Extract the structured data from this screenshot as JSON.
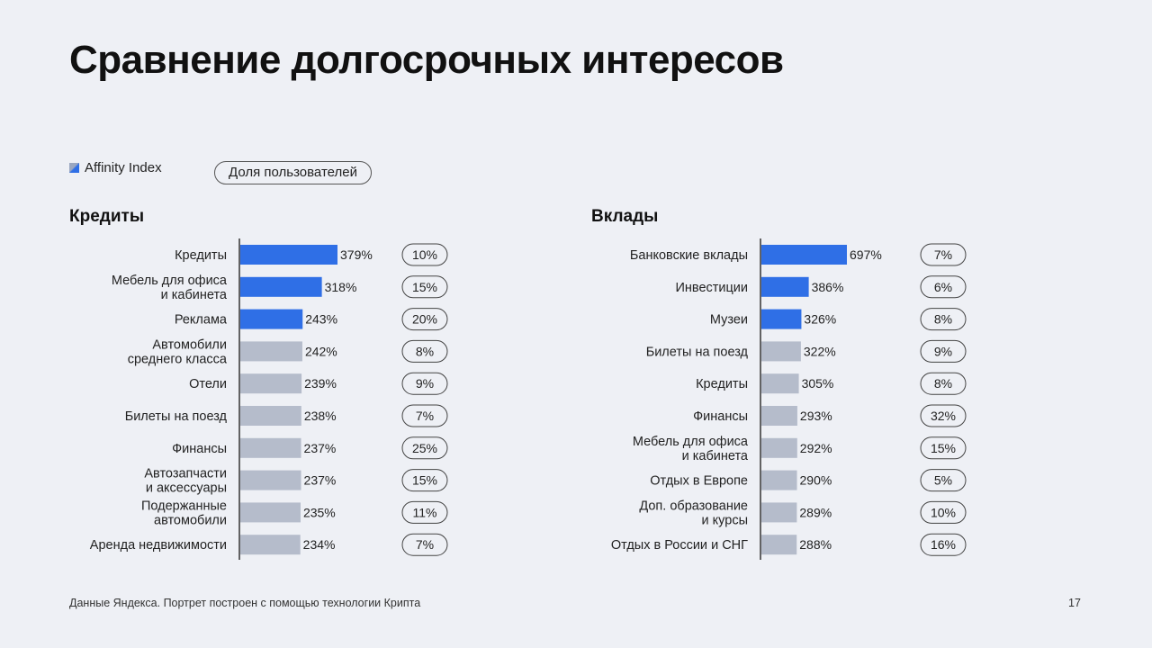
{
  "title": "Сравнение долгосрочных интересов",
  "legend": {
    "affinity_label": "Affinity Index",
    "share_label": "Доля пользователей"
  },
  "footer": "Данные Яндекса. Портрет построен с помощью технологии Крипта",
  "page_number": "17",
  "colors": {
    "highlight": "#2f6fe6",
    "normal": "#b5bccb",
    "axis": "#333333"
  },
  "chart_data": [
    {
      "type": "bar",
      "title": "Кредиты",
      "categories": [
        [
          "Кредиты"
        ],
        [
          "Мебель для офиса",
          "и кабинета"
        ],
        [
          "Реклама"
        ],
        [
          "Автомобили",
          "среднего класса"
        ],
        [
          "Отели"
        ],
        [
          "Билеты на поезд"
        ],
        [
          "Финансы"
        ],
        [
          "Автозапчасти",
          "и аксессуары"
        ],
        [
          "Подержанные",
          "автомобили"
        ],
        [
          "Аренда недвижимости"
        ]
      ],
      "values": [
        379,
        318,
        243,
        242,
        239,
        238,
        237,
        237,
        235,
        234
      ],
      "value_labels": [
        "379%",
        "318%",
        "243%",
        "242%",
        "239%",
        "238%",
        "237%",
        "237%",
        "235%",
        "234%"
      ],
      "shares": [
        "10%",
        "15%",
        "20%",
        "8%",
        "9%",
        "7%",
        "25%",
        "15%",
        "11%",
        "7%"
      ],
      "highlighted": [
        true,
        true,
        true,
        false,
        false,
        false,
        false,
        false,
        false,
        false
      ]
    },
    {
      "type": "bar",
      "title": "Вклады",
      "categories": [
        [
          "Банковские вклады"
        ],
        [
          "Инвестиции"
        ],
        [
          "Музеи"
        ],
        [
          "Билеты на поезд"
        ],
        [
          "Кредиты"
        ],
        [
          "Финансы"
        ],
        [
          "Мебель для офиса",
          "и кабинета"
        ],
        [
          "Отдых в Европе"
        ],
        [
          "Доп. образование",
          "и курсы"
        ],
        [
          "Отдых в России и СНГ"
        ]
      ],
      "values": [
        697,
        386,
        326,
        322,
        305,
        293,
        292,
        290,
        289,
        288
      ],
      "value_labels": [
        "697%",
        "386%",
        "326%",
        "322%",
        "305%",
        "293%",
        "292%",
        "290%",
        "289%",
        "288%"
      ],
      "shares": [
        "7%",
        "6%",
        "8%",
        "9%",
        "8%",
        "32%",
        "15%",
        "5%",
        "10%",
        "16%"
      ],
      "highlighted": [
        true,
        true,
        true,
        false,
        false,
        false,
        false,
        false,
        false,
        false
      ]
    }
  ]
}
